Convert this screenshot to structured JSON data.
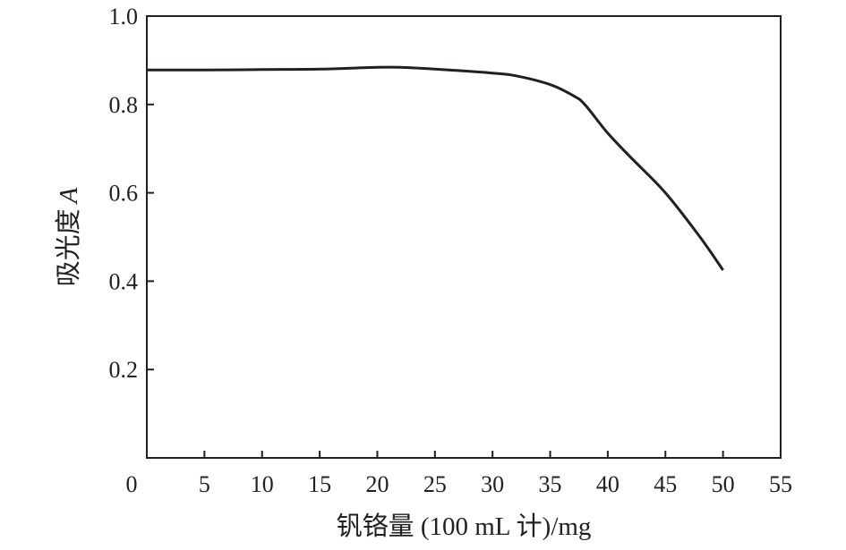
{
  "chart_data": {
    "type": "line",
    "title": "",
    "xlabel": "钒铬量 (100 mL 计)/mg",
    "ylabel": "吸光度",
    "ylabel_italic_symbol": "A",
    "xlim": [
      0,
      55
    ],
    "ylim": [
      0,
      1.0
    ],
    "x_ticks": [
      0,
      5,
      10,
      15,
      20,
      25,
      30,
      35,
      40,
      45,
      50,
      55
    ],
    "y_ticks": [
      0.2,
      0.4,
      0.6,
      0.8,
      1.0
    ],
    "x_tick_labels": [
      "0",
      "5",
      "10",
      "15",
      "20",
      "25",
      "30",
      "35",
      "40",
      "45",
      "50",
      "55"
    ],
    "y_tick_labels": [
      "0.2",
      "0.4",
      "0.6",
      "0.8",
      "1.0"
    ],
    "grid": false,
    "series": [
      {
        "color": "#231f20",
        "x": [
          0,
          5,
          10,
          15,
          20,
          22,
          25,
          28,
          30,
          32,
          35,
          37,
          38,
          40,
          42,
          45,
          48,
          50
        ],
        "y": [
          0.878,
          0.878,
          0.879,
          0.88,
          0.884,
          0.884,
          0.88,
          0.875,
          0.871,
          0.865,
          0.845,
          0.82,
          0.8,
          0.735,
          0.68,
          0.6,
          0.5,
          0.425
        ]
      }
    ]
  }
}
